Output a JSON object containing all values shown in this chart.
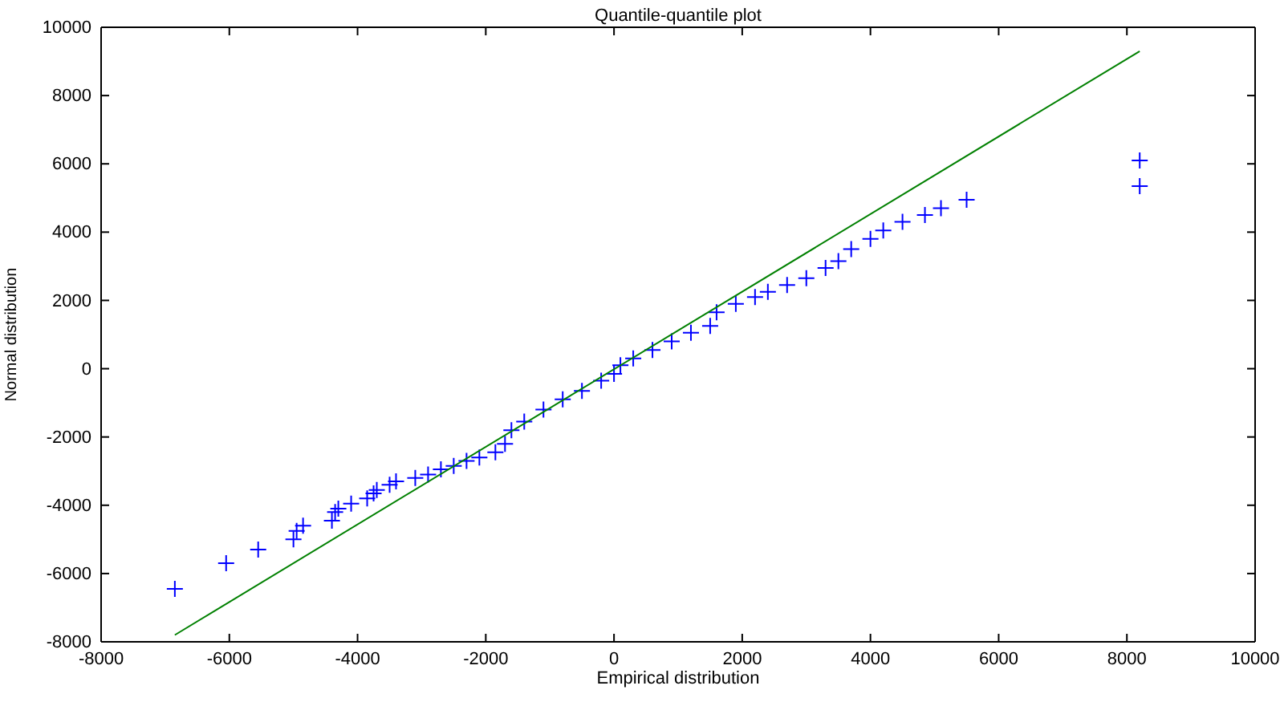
{
  "chart_data": {
    "type": "scatter",
    "title": "Quantile-quantile plot",
    "xlabel": "Empirical distribution",
    "ylabel": "Normal distribution",
    "xlim": [
      -8000,
      10000
    ],
    "ylim": [
      -8000,
      10000
    ],
    "xticks": [
      -8000,
      -6000,
      -4000,
      -2000,
      0,
      2000,
      4000,
      6000,
      8000,
      10000
    ],
    "yticks": [
      -8000,
      -6000,
      -4000,
      -2000,
      0,
      2000,
      4000,
      6000,
      8000,
      10000
    ],
    "grid": false,
    "series": [
      {
        "color": "#0000ff",
        "marker": "cross",
        "x": [
          -6850,
          -6050,
          -5550,
          -5000,
          -4950,
          -4850,
          -4400,
          -4350,
          -4300,
          -4100,
          -3850,
          -3750,
          -3700,
          -3500,
          -3400,
          -3100,
          -2900,
          -2700,
          -2500,
          -2300,
          -2100,
          -1850,
          -1700,
          -1600,
          -1400,
          -1100,
          -800,
          -500,
          -200,
          0,
          100,
          300,
          600,
          900,
          1200,
          1500,
          1600,
          1900,
          2200,
          2400,
          2700,
          3000,
          3300,
          3500,
          3700,
          4000,
          4200,
          4500,
          4850,
          5100,
          5500,
          8200,
          8200
        ],
        "values": [
          -6450,
          -5700,
          -5300,
          -5000,
          -4750,
          -4600,
          -4450,
          -4200,
          -4100,
          -3950,
          -3800,
          -3650,
          -3550,
          -3400,
          -3300,
          -3200,
          -3100,
          -2950,
          -2850,
          -2700,
          -2600,
          -2450,
          -2200,
          -1800,
          -1550,
          -1200,
          -900,
          -650,
          -350,
          -150,
          100,
          300,
          550,
          800,
          1050,
          1250,
          1650,
          1900,
          2100,
          2250,
          2450,
          2650,
          2950,
          3150,
          3500,
          3800,
          4050,
          4300,
          4500,
          4700,
          4950,
          6100,
          5350
        ]
      },
      {
        "type": "line",
        "color": "#008000",
        "marker": "none",
        "line_style": "solid",
        "x": [
          -6850,
          8200
        ],
        "values": [
          -7800,
          9300
        ]
      }
    ]
  }
}
